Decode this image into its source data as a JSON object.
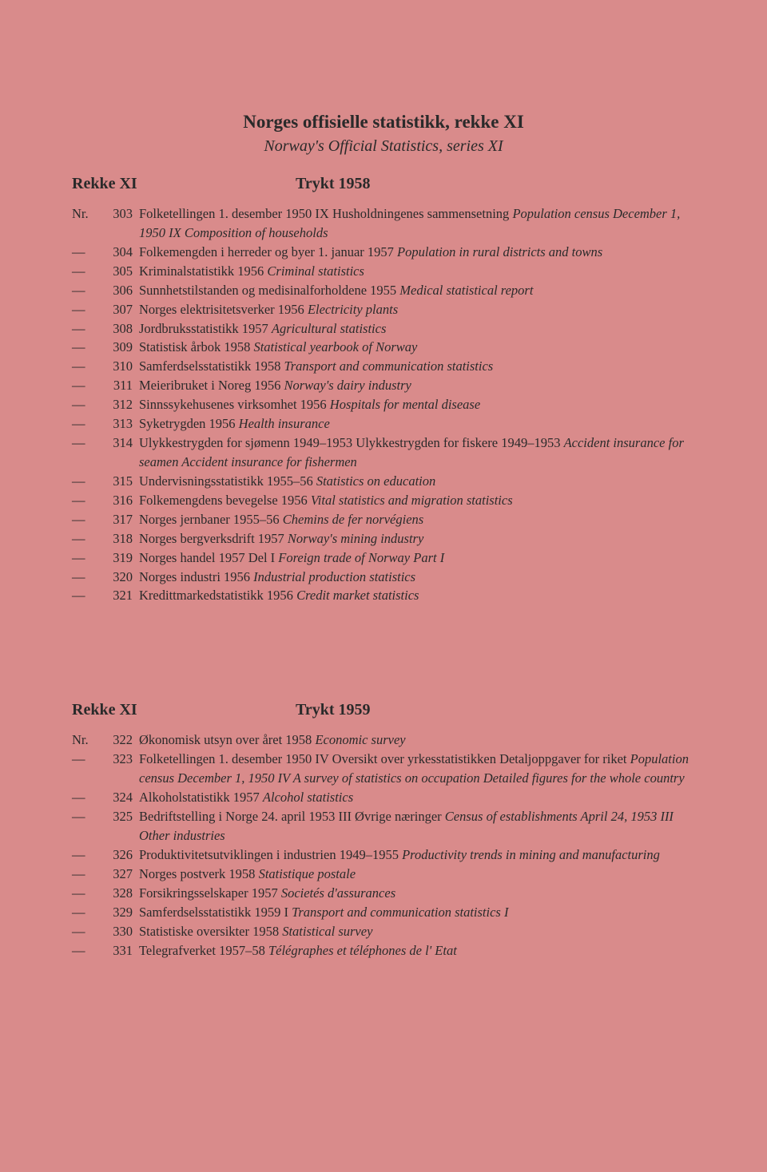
{
  "main_title": "Norges offisielle statistikk, rekke XI",
  "subtitle": "Norway's Official Statistics, series XI",
  "section1": {
    "left": "Rekke XI",
    "right": "Trykt 1958",
    "entries": [
      {
        "prefix": "Nr.",
        "num": "303",
        "seg": [
          {
            "t": "Folketellingen 1. desember 1950 IX Husholdningenes sammensetning "
          },
          {
            "t": "Population census December 1, 1950 IX Composition of households",
            "i": true
          }
        ]
      },
      {
        "prefix": "—",
        "num": "304",
        "seg": [
          {
            "t": "Folkemengden i herreder og byer 1. januar 1957 "
          },
          {
            "t": "Population in rural districts and towns",
            "i": true
          }
        ]
      },
      {
        "prefix": "—",
        "num": "305",
        "seg": [
          {
            "t": "Kriminalstatistikk 1956 "
          },
          {
            "t": "Criminal statistics",
            "i": true
          }
        ]
      },
      {
        "prefix": "—",
        "num": "306",
        "seg": [
          {
            "t": "Sunnhetstilstanden og medisinalforholdene 1955 "
          },
          {
            "t": "Medical statistical report",
            "i": true
          }
        ]
      },
      {
        "prefix": "—",
        "num": "307",
        "seg": [
          {
            "t": "Norges elektrisitetsverker 1956 "
          },
          {
            "t": "Electricity plants",
            "i": true
          }
        ]
      },
      {
        "prefix": "—",
        "num": "308",
        "seg": [
          {
            "t": "Jordbruksstatistikk 1957 "
          },
          {
            "t": "Agricultural statistics",
            "i": true
          }
        ]
      },
      {
        "prefix": "—",
        "num": "309",
        "seg": [
          {
            "t": "Statistisk årbok 1958 "
          },
          {
            "t": "Statistical yearbook of Norway",
            "i": true
          }
        ]
      },
      {
        "prefix": "—",
        "num": "310",
        "seg": [
          {
            "t": "Samferdselsstatistikk 1958 "
          },
          {
            "t": "Transport and communication statistics",
            "i": true
          }
        ]
      },
      {
        "prefix": "—",
        "num": "311",
        "seg": [
          {
            "t": "Meieribruket i Noreg 1956 "
          },
          {
            "t": "Norway's dairy industry",
            "i": true
          }
        ]
      },
      {
        "prefix": "—",
        "num": "312",
        "seg": [
          {
            "t": "Sinnssykehusenes virksomhet 1956 "
          },
          {
            "t": "Hospitals for mental disease",
            "i": true
          }
        ]
      },
      {
        "prefix": "—",
        "num": "313",
        "seg": [
          {
            "t": "Syketrygden 1956 "
          },
          {
            "t": "Health insurance",
            "i": true
          }
        ]
      },
      {
        "prefix": "—",
        "num": "314",
        "seg": [
          {
            "t": "Ulykkestrygden for sjømenn 1949–1953 Ulykkestrygden for fiskere 1949–1953 "
          },
          {
            "t": "Accident insurance for seamen Accident insurance for fishermen",
            "i": true
          }
        ]
      },
      {
        "prefix": "—",
        "num": "315",
        "seg": [
          {
            "t": "Undervisningsstatistikk 1955–56 "
          },
          {
            "t": "Statistics on education",
            "i": true
          }
        ]
      },
      {
        "prefix": "—",
        "num": "316",
        "seg": [
          {
            "t": "Folkemengdens bevegelse 1956 "
          },
          {
            "t": "Vital statistics and migration statistics",
            "i": true
          }
        ]
      },
      {
        "prefix": "—",
        "num": "317",
        "seg": [
          {
            "t": "Norges jernbaner 1955–56 "
          },
          {
            "t": "Chemins de fer norvégiens",
            "i": true
          }
        ]
      },
      {
        "prefix": "—",
        "num": "318",
        "seg": [
          {
            "t": "Norges bergverksdrift 1957 "
          },
          {
            "t": "Norway's mining industry",
            "i": true
          }
        ]
      },
      {
        "prefix": "—",
        "num": "319",
        "seg": [
          {
            "t": "Norges handel 1957 Del I "
          },
          {
            "t": "Foreign trade of Norway Part I",
            "i": true
          }
        ]
      },
      {
        "prefix": "—",
        "num": "320",
        "seg": [
          {
            "t": "Norges industri 1956 "
          },
          {
            "t": "Industrial production statistics",
            "i": true
          }
        ]
      },
      {
        "prefix": "—",
        "num": "321",
        "seg": [
          {
            "t": "Kredittmarkedstatistikk 1956 "
          },
          {
            "t": "Credit market statistics",
            "i": true
          }
        ]
      }
    ]
  },
  "section2": {
    "left": "Rekke XI",
    "right": "Trykt 1959",
    "entries": [
      {
        "prefix": "Nr.",
        "num": "322",
        "seg": [
          {
            "t": "Økonomisk utsyn over året 1958 "
          },
          {
            "t": "Economic survey",
            "i": true
          }
        ]
      },
      {
        "prefix": "—",
        "num": "323",
        "seg": [
          {
            "t": "Folketellingen 1. desember 1950 IV Oversikt over yrkesstatistikken Detaljoppgaver for riket "
          },
          {
            "t": "Population census December 1, 1950 IV A survey of statistics on occupation Detailed figures for the whole country",
            "i": true
          }
        ]
      },
      {
        "prefix": "—",
        "num": "324",
        "seg": [
          {
            "t": "Alkoholstatistikk 1957 "
          },
          {
            "t": "Alcohol statistics",
            "i": true
          }
        ]
      },
      {
        "prefix": "—",
        "num": "325",
        "seg": [
          {
            "t": "Bedriftstelling i Norge 24. april 1953 III Øvrige næringer "
          },
          {
            "t": "Census of establishments April 24, 1953 III Other industries",
            "i": true
          }
        ]
      },
      {
        "prefix": "—",
        "num": "326",
        "seg": [
          {
            "t": "Produktivitetsutviklingen i industrien 1949–1955 "
          },
          {
            "t": "Productivity trends in mining and manufacturing",
            "i": true
          }
        ]
      },
      {
        "prefix": "—",
        "num": "327",
        "seg": [
          {
            "t": "Norges postverk 1958 "
          },
          {
            "t": "Statistique postale",
            "i": true
          }
        ]
      },
      {
        "prefix": "—",
        "num": "328",
        "seg": [
          {
            "t": "Forsikringsselskaper 1957 "
          },
          {
            "t": "Societés d'assurances",
            "i": true
          }
        ]
      },
      {
        "prefix": "—",
        "num": "329",
        "seg": [
          {
            "t": "Samferdselsstatistikk 1959 I "
          },
          {
            "t": "Transport and communication statistics I",
            "i": true
          }
        ]
      },
      {
        "prefix": "—",
        "num": "330",
        "seg": [
          {
            "t": "Statistiske oversikter 1958 "
          },
          {
            "t": "Statistical survey",
            "i": true
          }
        ]
      },
      {
        "prefix": "—",
        "num": "331",
        "seg": [
          {
            "t": "Telegrafverket 1957–58 "
          },
          {
            "t": "Télégraphes et téléphones de l' Etat",
            "i": true
          }
        ]
      }
    ]
  }
}
